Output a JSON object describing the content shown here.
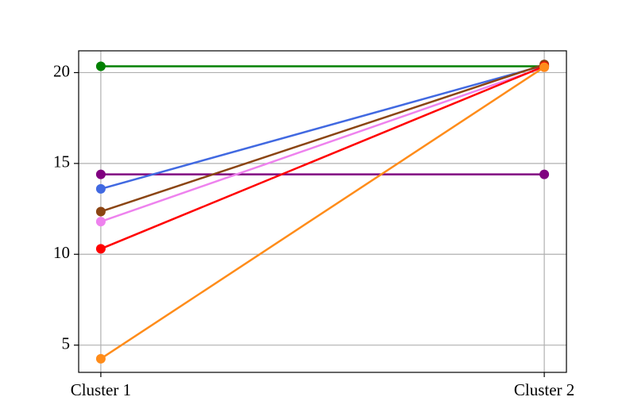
{
  "chart_data": {
    "type": "slope",
    "categories": [
      "Cluster 1",
      "Cluster 2"
    ],
    "series": [
      {
        "color": "#008000",
        "values": [
          20.35,
          20.35
        ]
      },
      {
        "color": "#800080",
        "values": [
          14.4,
          14.4
        ]
      },
      {
        "color": "#4169e1",
        "values": [
          13.6,
          20.4
        ]
      },
      {
        "color": "#8b4513",
        "values": [
          12.35,
          20.45
        ]
      },
      {
        "color": "#ee82ee",
        "values": [
          11.8,
          20.3
        ]
      },
      {
        "color": "#ff0000",
        "values": [
          10.3,
          20.35
        ]
      },
      {
        "color": "#ff8c1a",
        "values": [
          4.25,
          20.3
        ]
      }
    ],
    "ylim": [
      3.5,
      21.2
    ],
    "yticks": [
      5,
      10,
      15,
      20
    ],
    "grid": true
  }
}
